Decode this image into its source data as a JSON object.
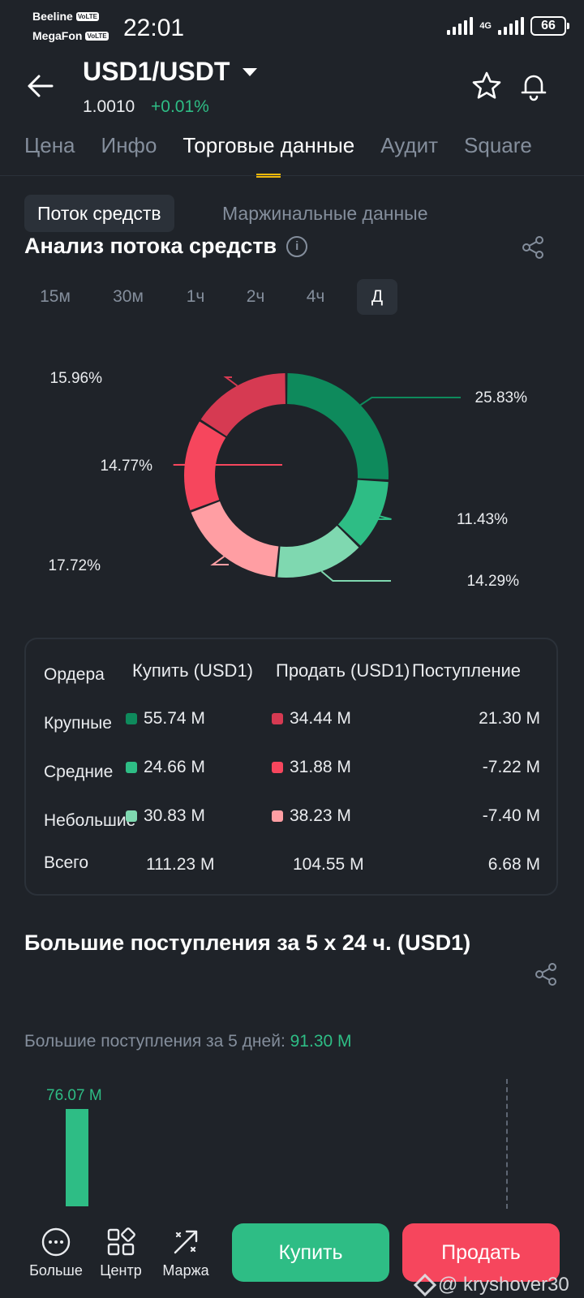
{
  "status_bar": {
    "carrier1": "Beeline",
    "carrier2": "MegaFon",
    "volte": "VoLTE",
    "time": "22:01",
    "network": "4G",
    "battery": "66"
  },
  "header": {
    "pair": "USD1/USDT",
    "price": "1.0010",
    "change": "+0.01%"
  },
  "tabs": [
    "Цена",
    "Инфо",
    "Торговые данные",
    "Аудит",
    "Square"
  ],
  "subtabs": {
    "active": "Поток средств",
    "other": "Маржинальные данные"
  },
  "analysis": {
    "title": "Анализ потока средств",
    "info_icon": "i",
    "timeframes": [
      "15м",
      "30м",
      "1ч",
      "2ч",
      "4ч",
      "Д"
    ],
    "active_timeframe": "Д"
  },
  "colors": {
    "buy_large": "#0e8a5c",
    "buy_medium": "#2ebd85",
    "buy_small": "#7fd8b0",
    "sell_large": "#d63a52",
    "sell_medium": "#f6465d",
    "sell_small": "#ff9ea3",
    "accent": "#f0b90b"
  },
  "chart_data": {
    "type": "pie",
    "variant": "donut",
    "slices": [
      {
        "label": "25.83%",
        "value": 25.83,
        "color": "#0e8a5c"
      },
      {
        "label": "11.43%",
        "value": 11.43,
        "color": "#2ebd85"
      },
      {
        "label": "14.29%",
        "value": 14.29,
        "color": "#7fd8b0"
      },
      {
        "label": "17.72%",
        "value": 17.72,
        "color": "#ff9ea3"
      },
      {
        "label": "14.77%",
        "value": 14.77,
        "color": "#f6465d"
      },
      {
        "label": "15.96%",
        "value": 15.96,
        "color": "#d63a52"
      }
    ]
  },
  "orders": {
    "headers": {
      "orders": "Ордера",
      "buy": "Купить (USD1)",
      "sell": "Продать (USD1)",
      "net": "Поступление"
    },
    "rows": [
      {
        "label": "Крупные",
        "buy": "55.74 M",
        "sell": "34.44 M",
        "net": "21.30 M"
      },
      {
        "label": "Средние",
        "buy": "24.66 M",
        "sell": "31.88 M",
        "net": "-7.22 M"
      },
      {
        "label": "Небольшие",
        "buy": "30.83 M",
        "sell": "38.23 M",
        "net": "-7.40 M"
      },
      {
        "label": "Всего",
        "buy": "111.23 M",
        "sell": "104.55 M",
        "net": "6.68 M"
      }
    ]
  },
  "big_inflow": {
    "title": "Большие поступления за 5 x 24 ч. (USD1)",
    "subtitle_label": "Большие поступления за 5 дней:",
    "subtitle_value": "91.30 M",
    "bar_label": "76.07 M"
  },
  "bottom_nav": {
    "more": "Больше",
    "center": "Центр",
    "margin": "Маржа",
    "buy": "Купить",
    "sell": "Продать"
  },
  "watermark": "@ kryshover30"
}
